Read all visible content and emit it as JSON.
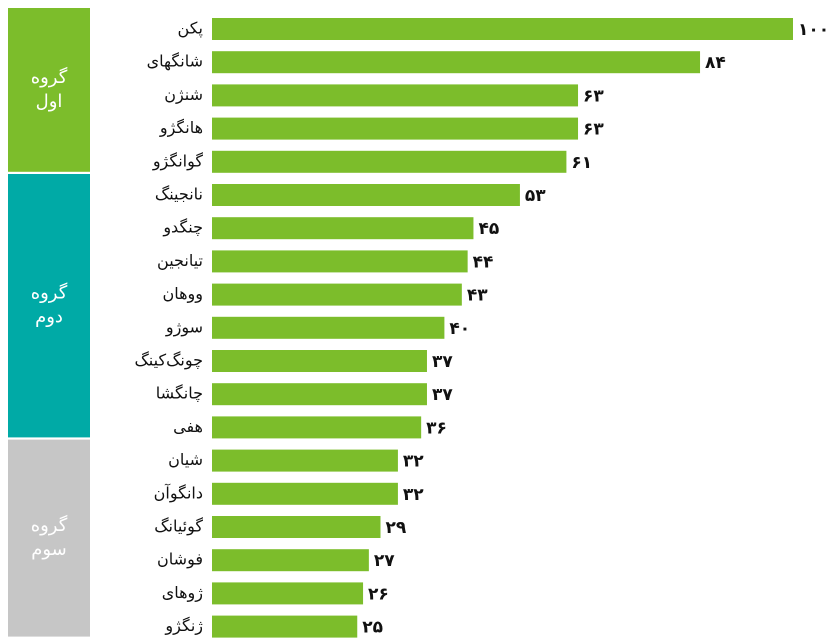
{
  "chart_data": {
    "type": "bar",
    "color": "#7cbd2b",
    "xlim": [
      0,
      100
    ],
    "groups": [
      {
        "label_lines": [
          "گروه",
          "اول"
        ],
        "color": "#7cbd2b",
        "categories": [
          "پکن",
          "شانگهای",
          "شنژن",
          "هانگژو",
          "گوانگژو"
        ],
        "values": [
          100,
          84,
          63,
          63,
          61
        ],
        "value_labels": [
          "۱۰۰",
          "۸۴",
          "۶۳",
          "۶۳",
          "۶۱"
        ]
      },
      {
        "label_lines": [
          "گروه",
          "دوم"
        ],
        "color": "#00aaa6",
        "categories": [
          "نانجینگ",
          "چنگدو",
          "تیانجین",
          "ووهان",
          "سوژو",
          "چونگ‌کینگ",
          "چانگشا",
          "هفی"
        ],
        "values": [
          53,
          45,
          44,
          43,
          40,
          37,
          37,
          36
        ],
        "value_labels": [
          "۵۳",
          "۴۵",
          "۴۴",
          "۴۳",
          "۴۰",
          "۳۷",
          "۳۷",
          "۳۶"
        ]
      },
      {
        "label_lines": [
          "گروه",
          "سوم"
        ],
        "color": "#c6c6c6",
        "categories": [
          "شیان",
          "دانگوآن",
          "گوئیانگ",
          "فوشان",
          "ژوهای",
          "ژنگژو"
        ],
        "values": [
          32,
          32,
          29,
          27,
          26,
          25
        ],
        "value_labels": [
          "۳۲",
          "۳۲",
          "۲۹",
          "۲۷",
          "۲۶",
          "۲۵"
        ]
      }
    ]
  }
}
